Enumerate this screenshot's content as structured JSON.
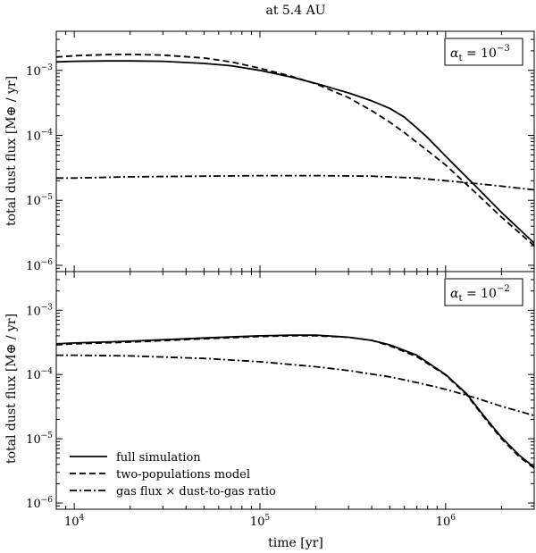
{
  "chart_data": {
    "title": "at 5.4 AU",
    "type": "line",
    "xlabel": "time [yr]",
    "xscale": "log",
    "xlim": [
      8000,
      3000000
    ],
    "x_ticks": [
      10000,
      100000,
      1000000
    ],
    "x_tick_labels": [
      {
        "base": "10",
        "exp": "4"
      },
      {
        "base": "10",
        "exp": "5"
      },
      {
        "base": "10",
        "exp": "6"
      }
    ],
    "legend": {
      "location": "lower-left",
      "entries": [
        {
          "label": "full simulation",
          "dash": "solid"
        },
        {
          "label": "two-populations model",
          "dash": "dashed"
        },
        {
          "label": "gas flux × dust-to-gas ratio",
          "dash": "dashdot"
        }
      ]
    },
    "panels": [
      {
        "name": "top",
        "annotation": {
          "symbol": "α",
          "sub": "t",
          "text": " = 10",
          "exp": "−3"
        },
        "ylabel": "total dust flux [M⊕ / yr]",
        "yscale": "log",
        "ylim": [
          8e-07,
          0.004
        ],
        "y_ticks": [
          1e-06,
          1e-05,
          0.0001,
          0.001
        ],
        "y_tick_labels": [
          {
            "base": "10",
            "exp": "−6"
          },
          {
            "base": "10",
            "exp": "−5"
          },
          {
            "base": "10",
            "exp": "−4"
          },
          {
            "base": "10",
            "exp": "−3"
          }
        ],
        "series": [
          {
            "name": "full simulation",
            "dash": "solid",
            "x": [
              8000,
              10000,
              15000,
              20000,
              30000,
              50000,
              70000,
              100000,
              150000,
              200000,
              300000,
              400000,
              500000,
              600000,
              700000,
              800000,
              1000000,
              1500000,
              2000000,
              3000000
            ],
            "y": [
              0.00135,
              0.00138,
              0.0014,
              0.0014,
              0.00138,
              0.00128,
              0.00118,
              0.001,
              0.00078,
              0.00063,
              0.00045,
              0.00034,
              0.00026,
              0.00019,
              0.00013,
              9.2e-05,
              4.8e-05,
              1.5e-05,
              6.5e-06,
              2.2e-06
            ]
          },
          {
            "name": "two-populations model",
            "dash": "dashed",
            "x": [
              8000,
              10000,
              15000,
              20000,
              30000,
              50000,
              70000,
              100000,
              150000,
              200000,
              300000,
              400000,
              500000,
              600000,
              700000,
              800000,
              1000000,
              1500000,
              2000000,
              3000000
            ],
            "y": [
              0.0016,
              0.00168,
              0.00175,
              0.00176,
              0.00172,
              0.00155,
              0.00135,
              0.00108,
              0.0008,
              0.00062,
              0.00038,
              0.00024,
              0.00016,
              0.00011,
              7.8e-05,
              5.8e-05,
              3.5e-05,
              1.2e-05,
              5.5e-06,
              2e-06
            ]
          },
          {
            "name": "gas flux × dust-to-gas ratio",
            "dash": "dashdot",
            "x": [
              8000,
              10000,
              20000,
              50000,
              100000,
              200000,
              400000,
              700000,
              1000000,
              1500000,
              2000000,
              3000000
            ],
            "y": [
              2.2e-05,
              2.2e-05,
              2.3e-05,
              2.35e-05,
              2.4e-05,
              2.4e-05,
              2.35e-05,
              2.2e-05,
              2e-05,
              1.8e-05,
              1.65e-05,
              1.45e-05
            ]
          }
        ]
      },
      {
        "name": "bottom",
        "annotation": {
          "symbol": "α",
          "sub": "t",
          "text": " = 10",
          "exp": "−2"
        },
        "ylabel": "total dust flux [M⊕ / yr]",
        "yscale": "log",
        "ylim": [
          8e-07,
          0.004
        ],
        "y_ticks": [
          1e-06,
          1e-05,
          0.0001,
          0.001
        ],
        "y_tick_labels": [
          {
            "base": "10",
            "exp": "−6"
          },
          {
            "base": "10",
            "exp": "−5"
          },
          {
            "base": "10",
            "exp": "−4"
          },
          {
            "base": "10",
            "exp": "−3"
          }
        ],
        "series": [
          {
            "name": "full simulation",
            "dash": "solid",
            "x": [
              8000,
              10000,
              20000,
              50000,
              100000,
              150000,
              200000,
              300000,
              400000,
              500000,
              700000,
              1000000,
              1300000,
              1600000,
              2000000,
              2500000,
              3000000
            ],
            "y": [
              0.0003,
              0.00031,
              0.00033,
              0.00037,
              0.0004,
              0.00041,
              0.00041,
              0.00038,
              0.00034,
              0.00029,
              0.0002,
              0.0001,
              5e-05,
              2.3e-05,
              1.05e-05,
              5.5e-06,
              3.6e-06
            ]
          },
          {
            "name": "two-populations model",
            "dash": "dashed",
            "x": [
              8000,
              10000,
              20000,
              50000,
              100000,
              150000,
              200000,
              300000,
              400000,
              500000,
              700000,
              1000000,
              1300000,
              1600000,
              2000000,
              2500000,
              3000000
            ],
            "y": [
              0.00029,
              0.0003,
              0.00032,
              0.00036,
              0.00039,
              0.0004,
              0.0004,
              0.00038,
              0.00034,
              0.00028,
              0.00019,
              9.8e-05,
              4.8e-05,
              2.2e-05,
              1e-05,
              5.2e-06,
              3.5e-06
            ]
          },
          {
            "name": "gas flux × dust-to-gas ratio",
            "dash": "dashdot",
            "x": [
              8000,
              10000,
              20000,
              50000,
              100000,
              200000,
              300000,
              500000,
              700000,
              1000000,
              1500000,
              2000000,
              3000000
            ],
            "y": [
              0.0002,
              0.0002,
              0.000195,
              0.000178,
              0.000158,
              0.000132,
              0.000115,
              9.2e-05,
              7.5e-05,
              5.9e-05,
              4.2e-05,
              3.2e-05,
              2.3e-05
            ]
          }
        ]
      }
    ]
  }
}
